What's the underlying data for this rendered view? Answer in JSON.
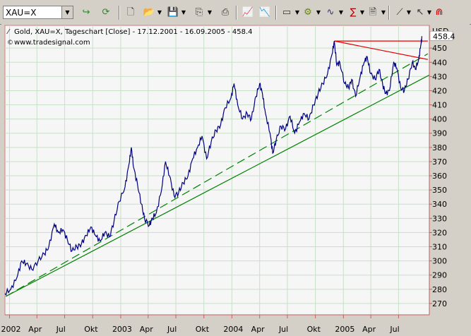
{
  "toolbar": {
    "symbol_value": "XAU=X"
  },
  "chart_data": {
    "type": "line",
    "title": "Gold, XAU=X, Tageschart [Close] - 17.12.2001 - 16.09.2005 - 458.4",
    "subtitle": "www.tradesignal.com",
    "currency": "USD",
    "last_value": 458.4,
    "ylim": [
      262,
      466
    ],
    "yticks": [
      270,
      280,
      290,
      300,
      310,
      320,
      330,
      340,
      350,
      360,
      370,
      380,
      390,
      400,
      410,
      420,
      430,
      440,
      450
    ],
    "xlim": [
      "2001-12-17",
      "2005-10-10"
    ],
    "xticks": [
      {
        "date": "2002-01-01",
        "label": "2002"
      },
      {
        "date": "2002-04-01",
        "label": "Apr"
      },
      {
        "date": "2002-07-01",
        "label": "Jul"
      },
      {
        "date": "2002-10-01",
        "label": "Okt"
      },
      {
        "date": "2003-01-01",
        "label": "2003"
      },
      {
        "date": "2003-04-01",
        "label": "Apr"
      },
      {
        "date": "2003-07-01",
        "label": "Jul"
      },
      {
        "date": "2003-10-01",
        "label": "Okt"
      },
      {
        "date": "2004-01-01",
        "label": "2004"
      },
      {
        "date": "2004-04-01",
        "label": "Apr"
      },
      {
        "date": "2004-07-01",
        "label": "Jul"
      },
      {
        "date": "2004-10-01",
        "label": "Okt"
      },
      {
        "date": "2005-01-01",
        "label": "2005"
      },
      {
        "date": "2005-04-01",
        "label": "Apr"
      },
      {
        "date": "2005-07-01",
        "label": "Jul"
      }
    ],
    "grid": true,
    "series": [
      {
        "color": "#000080",
        "points": [
          [
            "2001-12-17",
            277
          ],
          [
            "2002-01-05",
            280
          ],
          [
            "2002-01-25",
            288
          ],
          [
            "2002-02-10",
            300
          ],
          [
            "2002-02-25",
            298
          ],
          [
            "2002-03-15",
            294
          ],
          [
            "2002-04-05",
            300
          ],
          [
            "2002-04-25",
            305
          ],
          [
            "2002-05-10",
            310
          ],
          [
            "2002-05-28",
            326
          ],
          [
            "2002-06-10",
            320
          ],
          [
            "2002-06-25",
            322
          ],
          [
            "2002-07-10",
            315
          ],
          [
            "2002-07-25",
            307
          ],
          [
            "2002-08-10",
            310
          ],
          [
            "2002-08-25",
            312
          ],
          [
            "2002-09-10",
            318
          ],
          [
            "2002-09-25",
            324
          ],
          [
            "2002-10-10",
            318
          ],
          [
            "2002-10-25",
            314
          ],
          [
            "2002-11-10",
            320
          ],
          [
            "2002-11-25",
            317
          ],
          [
            "2002-12-10",
            328
          ],
          [
            "2002-12-27",
            342
          ],
          [
            "2003-01-15",
            352
          ],
          [
            "2003-01-28",
            368
          ],
          [
            "2003-02-05",
            380
          ],
          [
            "2003-02-12",
            366
          ],
          [
            "2003-02-25",
            354
          ],
          [
            "2003-03-10",
            340
          ],
          [
            "2003-03-20",
            330
          ],
          [
            "2003-04-05",
            325
          ],
          [
            "2003-04-15",
            330
          ],
          [
            "2003-04-28",
            334
          ],
          [
            "2003-05-15",
            350
          ],
          [
            "2003-05-28",
            370
          ],
          [
            "2003-06-10",
            360
          ],
          [
            "2003-06-25",
            346
          ],
          [
            "2003-07-10",
            348
          ],
          [
            "2003-07-25",
            355
          ],
          [
            "2003-08-10",
            360
          ],
          [
            "2003-08-25",
            372
          ],
          [
            "2003-09-10",
            380
          ],
          [
            "2003-09-25",
            388
          ],
          [
            "2003-10-10",
            372
          ],
          [
            "2003-10-25",
            384
          ],
          [
            "2003-11-10",
            392
          ],
          [
            "2003-11-25",
            396
          ],
          [
            "2003-12-10",
            408
          ],
          [
            "2003-12-29",
            415
          ],
          [
            "2004-01-08",
            425
          ],
          [
            "2004-01-20",
            410
          ],
          [
            "2004-02-05",
            400
          ],
          [
            "2004-02-20",
            404
          ],
          [
            "2004-03-05",
            400
          ],
          [
            "2004-03-20",
            416
          ],
          [
            "2004-04-01",
            425
          ],
          [
            "2004-04-10",
            418
          ],
          [
            "2004-04-20",
            404
          ],
          [
            "2004-05-05",
            390
          ],
          [
            "2004-05-14",
            376
          ],
          [
            "2004-05-25",
            385
          ],
          [
            "2004-06-10",
            395
          ],
          [
            "2004-06-25",
            393
          ],
          [
            "2004-07-10",
            402
          ],
          [
            "2004-07-25",
            390
          ],
          [
            "2004-08-10",
            398
          ],
          [
            "2004-08-25",
            404
          ],
          [
            "2004-09-10",
            400
          ],
          [
            "2004-09-25",
            410
          ],
          [
            "2004-10-10",
            418
          ],
          [
            "2004-10-25",
            425
          ],
          [
            "2004-11-10",
            432
          ],
          [
            "2004-11-25",
            446
          ],
          [
            "2004-12-02",
            455
          ],
          [
            "2004-12-10",
            438
          ],
          [
            "2004-12-20",
            440
          ],
          [
            "2005-01-05",
            425
          ],
          [
            "2005-01-18",
            422
          ],
          [
            "2005-01-28",
            428
          ],
          [
            "2005-02-10",
            416
          ],
          [
            "2005-02-25",
            430
          ],
          [
            "2005-03-10",
            440
          ],
          [
            "2005-03-20",
            444
          ],
          [
            "2005-03-31",
            432
          ],
          [
            "2005-04-15",
            428
          ],
          [
            "2005-04-28",
            435
          ],
          [
            "2005-05-10",
            424
          ],
          [
            "2005-05-20",
            418
          ],
          [
            "2005-06-01",
            420
          ],
          [
            "2005-06-15",
            440
          ],
          [
            "2005-06-25",
            436
          ],
          [
            "2005-07-08",
            422
          ],
          [
            "2005-07-20",
            420
          ],
          [
            "2005-08-01",
            428
          ],
          [
            "2005-08-15",
            440
          ],
          [
            "2005-08-25",
            435
          ],
          [
            "2005-09-05",
            442
          ],
          [
            "2005-09-12",
            452
          ],
          [
            "2005-09-16",
            458.4
          ]
        ]
      }
    ],
    "trendlines": [
      {
        "color": "#008000",
        "style": "solid",
        "from": [
          "2001-12-20",
          275
        ],
        "to": [
          "2005-10-10",
          431
        ]
      },
      {
        "color": "#008000",
        "style": "dashed",
        "from": [
          "2001-12-20",
          275
        ],
        "to": [
          "2005-10-05",
          446
        ]
      },
      {
        "color": "#e00000",
        "style": "solid",
        "from": [
          "2004-12-02",
          455
        ],
        "to": [
          "2005-10-05",
          442
        ]
      },
      {
        "color": "#e00000",
        "style": "solid",
        "from": [
          "2004-12-02",
          455
        ],
        "to": [
          "2005-10-05",
          455
        ]
      }
    ]
  }
}
